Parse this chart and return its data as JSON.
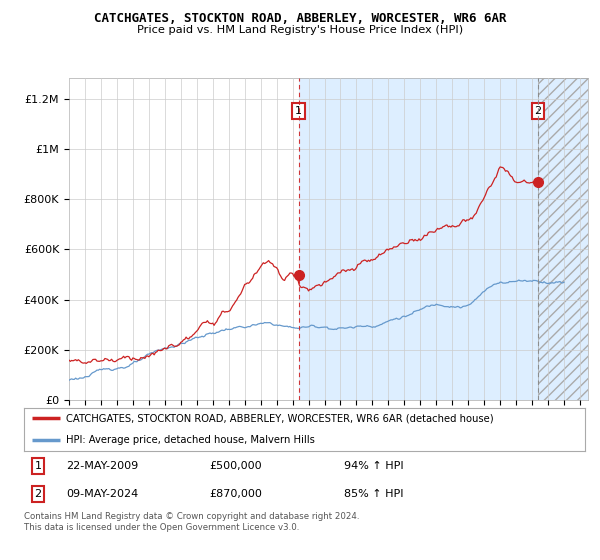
{
  "title": "CATCHGATES, STOCKTON ROAD, ABBERLEY, WORCESTER, WR6 6AR",
  "subtitle": "Price paid vs. HM Land Registry's House Price Index (HPI)",
  "ylabel_ticks": [
    "£0",
    "£200K",
    "£400K",
    "£600K",
    "£800K",
    "£1M",
    "£1.2M"
  ],
  "ytick_values": [
    0,
    200000,
    400000,
    600000,
    800000,
    1000000,
    1200000
  ],
  "ylim": [
    0,
    1280000
  ],
  "xlim_start": 1995.0,
  "xlim_end": 2027.5,
  "xtick_years": [
    1995,
    1996,
    1997,
    1998,
    1999,
    2000,
    2001,
    2002,
    2003,
    2004,
    2005,
    2006,
    2007,
    2008,
    2009,
    2010,
    2011,
    2012,
    2013,
    2014,
    2015,
    2016,
    2017,
    2018,
    2019,
    2020,
    2021,
    2022,
    2023,
    2024,
    2025,
    2026,
    2027
  ],
  "hpi_line_color": "#6699cc",
  "price_line_color": "#cc2222",
  "marker1_date": 2009.38,
  "marker1_value": 500000,
  "marker2_date": 2024.36,
  "marker2_value": 870000,
  "vline1_x": 2009.38,
  "vline2_x": 2024.36,
  "blue_bg_start": 2009.38,
  "blue_bg_end": 2027.5,
  "blue_bg_color": "#ddeeff",
  "hatched_region_start": 2024.36,
  "hatched_region_end": 2027.5,
  "legend_line1": "CATCHGATES, STOCKTON ROAD, ABBERLEY, WORCESTER, WR6 6AR (detached house)",
  "legend_line2": "HPI: Average price, detached house, Malvern Hills",
  "note1_label": "1",
  "note1_date": "22-MAY-2009",
  "note1_price": "£500,000",
  "note1_hpi": "94% ↑ HPI",
  "note2_label": "2",
  "note2_date": "09-MAY-2024",
  "note2_price": "£870,000",
  "note2_hpi": "85% ↑ HPI",
  "footer": "Contains HM Land Registry data © Crown copyright and database right 2024.\nThis data is licensed under the Open Government Licence v3.0.",
  "background_color": "#ffffff",
  "grid_color": "#cccccc"
}
